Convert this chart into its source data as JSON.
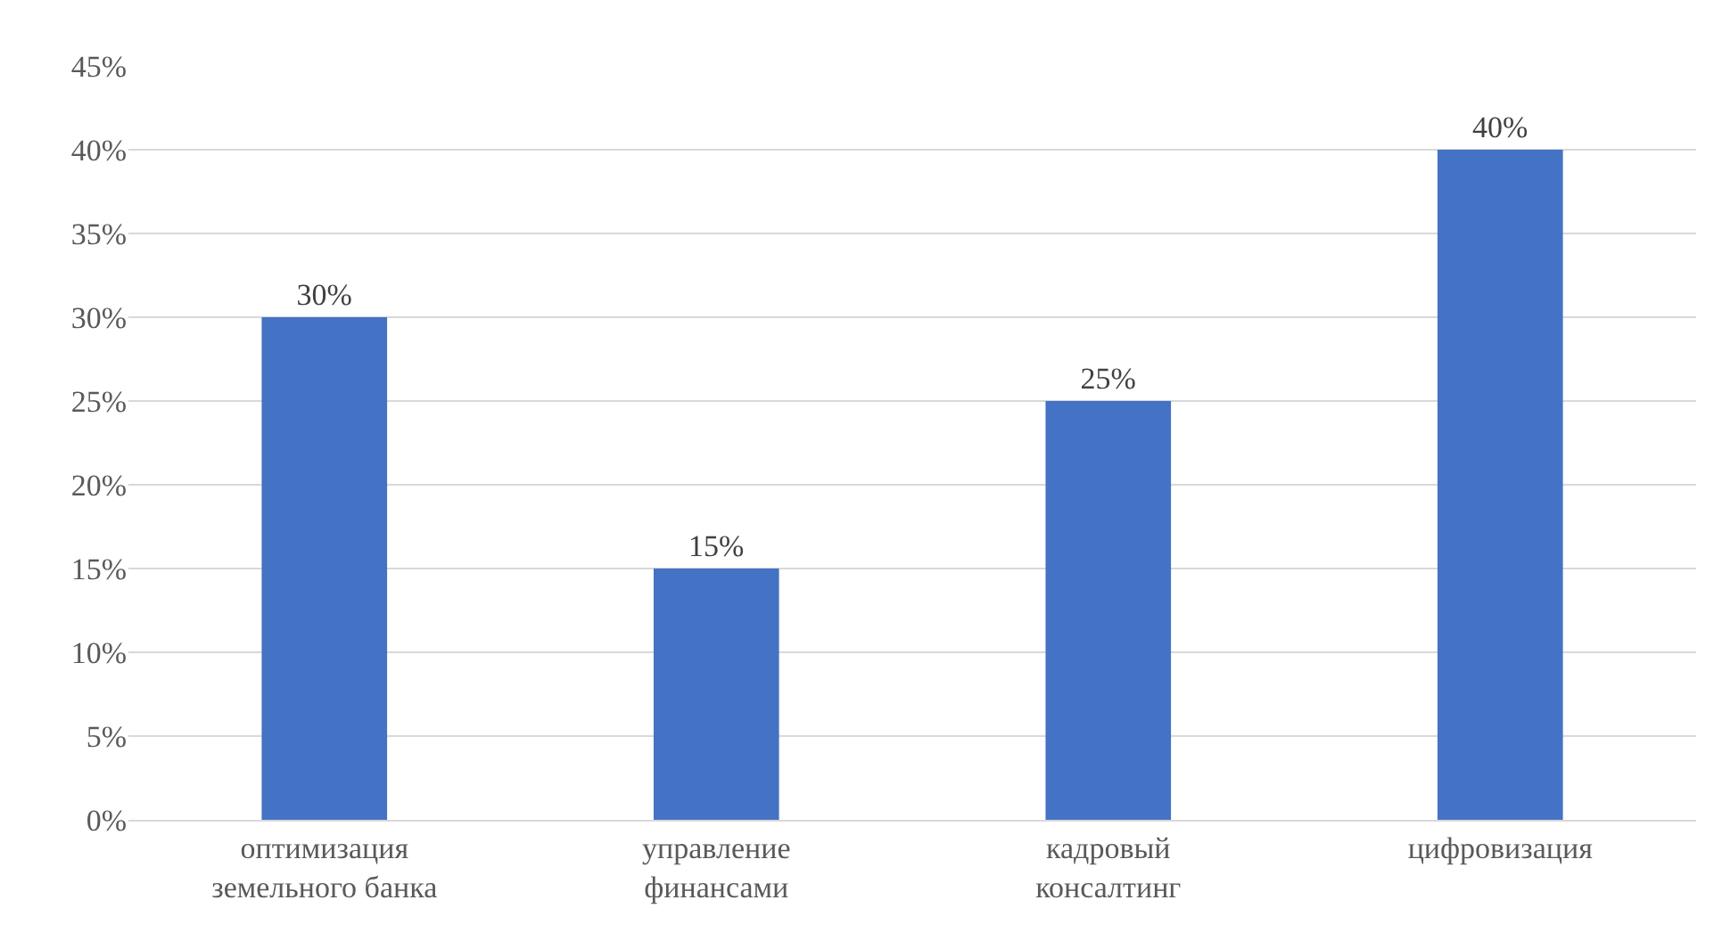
{
  "chart_data": {
    "type": "bar",
    "categories": [
      "оптимизация земельного банка",
      "управление финансами",
      "кадровый консалтинг",
      "цифровизация"
    ],
    "values": [
      30,
      15,
      25,
      40
    ],
    "value_labels": [
      "30%",
      "15%",
      "25%",
      "40%"
    ],
    "color": "#4472c4",
    "ylim": [
      0,
      45
    ],
    "yticks": [
      {
        "value": 0,
        "label": "0%"
      },
      {
        "value": 5,
        "label": "5%"
      },
      {
        "value": 10,
        "label": "10%"
      },
      {
        "value": 15,
        "label": "15%"
      },
      {
        "value": 20,
        "label": "20%"
      },
      {
        "value": 25,
        "label": "25%"
      },
      {
        "value": 30,
        "label": "30%"
      },
      {
        "value": 35,
        "label": "35%"
      },
      {
        "value": 40,
        "label": "40%"
      },
      {
        "value": 45,
        "label": "45%"
      }
    ],
    "grid": "y"
  }
}
